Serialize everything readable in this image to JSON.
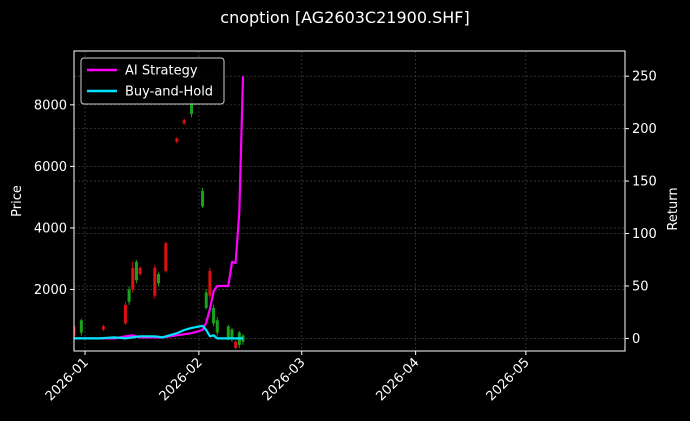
{
  "title": "cnoption [AG2603C21900.SHF]",
  "colors": {
    "background": "#000000",
    "ai_strategy": "#ff00ff",
    "buy_and_hold": "#00e5ff",
    "candle_up": "#1aa31a",
    "candle_down": "#e01010",
    "grid": "#3a3a3a",
    "axis": "#ffffff"
  },
  "legend": {
    "items": [
      {
        "label": "AI Strategy",
        "color": "#ff00ff"
      },
      {
        "label": "Buy-and-Hold",
        "color": "#00e5ff"
      }
    ]
  },
  "axes": {
    "left_label": "Price",
    "right_label": "Return",
    "left_ticks": [
      "2000",
      "4000",
      "6000",
      "8000"
    ],
    "right_ticks": [
      "0",
      "50",
      "100",
      "150",
      "200",
      "250"
    ],
    "x_ticks": [
      "2026-01",
      "2026-02",
      "2026-03",
      "2026-04",
      "2026-05"
    ]
  },
  "chart_data": {
    "type": "line",
    "title": "cnoption [AG2603C21900.SHF]",
    "xlabel": "",
    "ylabel": "Price",
    "ylabel_right": "Return",
    "xlim": [
      "2025-12-29",
      "2026-05-28"
    ],
    "ylim": [
      0,
      9750
    ],
    "ylim_right": [
      -12,
      274
    ],
    "grid": true,
    "legend_position": "upper left",
    "x_tick_labels": [
      "2026-01",
      "2026-02",
      "2026-03",
      "2026-04",
      "2026-05"
    ],
    "y_tick_labels": [
      2000,
      4000,
      6000,
      8000
    ],
    "y_right_tick_labels": [
      0,
      50,
      100,
      150,
      200,
      250
    ],
    "series": [
      {
        "name": "AI Strategy",
        "axis": "right",
        "color": "#ff00ff",
        "x": [
          "2025-12-29",
          "2026-01-05",
          "2026-01-09",
          "2026-01-12",
          "2026-01-14",
          "2026-01-16",
          "2026-01-20",
          "2026-01-22",
          "2026-01-26",
          "2026-01-28",
          "2026-01-30",
          "2026-02-02",
          "2026-02-03",
          "2026-02-04",
          "2026-02-05",
          "2026-02-06",
          "2026-02-09",
          "2026-02-10",
          "2026-02-11",
          "2026-02-12",
          "2026-02-13"
        ],
        "values": [
          0,
          0,
          0,
          2,
          3,
          1,
          1,
          1,
          3,
          4,
          5,
          8,
          15,
          28,
          45,
          50,
          50,
          73,
          72,
          120,
          250
        ]
      },
      {
        "name": "Buy-and-Hold",
        "axis": "right",
        "color": "#00e5ff",
        "x": [
          "2025-12-29",
          "2026-01-05",
          "2026-01-09",
          "2026-01-12",
          "2026-01-14",
          "2026-01-16",
          "2026-01-20",
          "2026-01-22",
          "2026-01-26",
          "2026-01-28",
          "2026-01-30",
          "2026-02-02",
          "2026-02-03",
          "2026-02-04",
          "2026-02-05",
          "2026-02-06",
          "2026-02-09",
          "2026-02-10",
          "2026-02-11",
          "2026-02-12",
          "2026-02-13"
        ],
        "values": [
          0,
          0,
          1,
          0,
          1,
          2,
          2,
          1,
          5,
          8,
          10,
          12,
          8,
          2,
          3,
          0,
          0,
          0,
          0,
          0,
          0
        ]
      }
    ],
    "candles": {
      "axis": "left",
      "note": "approximate OHLC bars (price axis)",
      "items": [
        {
          "date": "2025-12-29",
          "open": 800,
          "close": 500,
          "high": 900,
          "low": 400,
          "dir": "down"
        },
        {
          "date": "2025-12-31",
          "open": 600,
          "close": 1000,
          "high": 1050,
          "low": 500,
          "dir": "up"
        },
        {
          "date": "2026-01-06",
          "open": 800,
          "close": 700,
          "high": 850,
          "low": 650,
          "dir": "down"
        },
        {
          "date": "2026-01-12",
          "open": 1500,
          "close": 900,
          "high": 1600,
          "low": 850,
          "dir": "down"
        },
        {
          "date": "2026-01-13",
          "open": 1600,
          "close": 2000,
          "high": 2100,
          "low": 1500,
          "dir": "up"
        },
        {
          "date": "2026-01-14",
          "open": 2700,
          "close": 2000,
          "high": 2900,
          "low": 1900,
          "dir": "down"
        },
        {
          "date": "2026-01-15",
          "open": 2300,
          "close": 2900,
          "high": 2950,
          "low": 2200,
          "dir": "up"
        },
        {
          "date": "2026-01-16",
          "open": 2700,
          "close": 2500,
          "high": 2750,
          "low": 2450,
          "dir": "down"
        },
        {
          "date": "2026-01-20",
          "open": 2700,
          "close": 1800,
          "high": 2800,
          "low": 1700,
          "dir": "down"
        },
        {
          "date": "2026-01-21",
          "open": 2200,
          "close": 2500,
          "high": 2550,
          "low": 2100,
          "dir": "up"
        },
        {
          "date": "2026-01-23",
          "open": 3500,
          "close": 2600,
          "high": 3550,
          "low": 2550,
          "dir": "down"
        },
        {
          "date": "2026-01-26",
          "open": 6900,
          "close": 6800,
          "high": 6950,
          "low": 6750,
          "dir": "down"
        },
        {
          "date": "2026-01-28",
          "open": 7500,
          "close": 7400,
          "high": 7550,
          "low": 7350,
          "dir": "down"
        },
        {
          "date": "2026-01-30",
          "open": 7700,
          "close": 8200,
          "high": 8300,
          "low": 7600,
          "dir": "up"
        },
        {
          "date": "2026-02-02",
          "open": 4700,
          "close": 5200,
          "high": 5300,
          "low": 4650,
          "dir": "up"
        },
        {
          "date": "2026-02-03",
          "open": 1400,
          "close": 1900,
          "high": 2000,
          "low": 1350,
          "dir": "up"
        },
        {
          "date": "2026-02-04",
          "open": 2600,
          "close": 1800,
          "high": 2700,
          "low": 1700,
          "dir": "down"
        },
        {
          "date": "2026-02-05",
          "open": 900,
          "close": 1400,
          "high": 1500,
          "low": 800,
          "dir": "up"
        },
        {
          "date": "2026-02-06",
          "open": 600,
          "close": 1000,
          "high": 1100,
          "low": 500,
          "dir": "up"
        },
        {
          "date": "2026-02-09",
          "open": 400,
          "close": 800,
          "high": 850,
          "low": 350,
          "dir": "up"
        },
        {
          "date": "2026-02-10",
          "open": 400,
          "close": 700,
          "high": 750,
          "low": 300,
          "dir": "up"
        },
        {
          "date": "2026-02-11",
          "open": 300,
          "close": 100,
          "high": 350,
          "low": 50,
          "dir": "down"
        },
        {
          "date": "2026-02-12",
          "open": 200,
          "close": 600,
          "high": 650,
          "low": 100,
          "dir": "up"
        },
        {
          "date": "2026-02-13",
          "open": 300,
          "close": 500,
          "high": 550,
          "low": 200,
          "dir": "up"
        }
      ]
    }
  }
}
